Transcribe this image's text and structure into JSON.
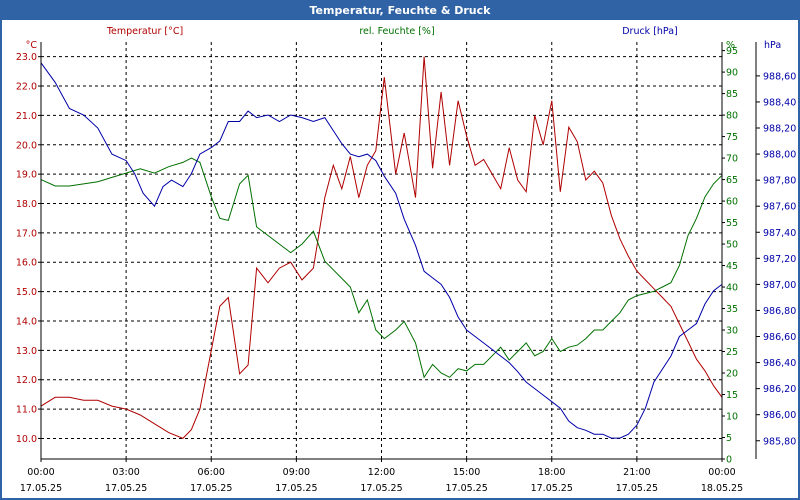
{
  "window_title": "Temperatur, Feuchte & Druck",
  "colors": {
    "temperature": "#b00000",
    "humidity": "#007000",
    "pressure": "#0000a8",
    "frame": "#2f63a5"
  },
  "chart_data": {
    "type": "line",
    "title": "Temperatur, Feuchte & Druck",
    "grid": true,
    "x_axis": {
      "ticks": [
        {
          "time": "00:00",
          "date": "17.05.25"
        },
        {
          "time": "03:00",
          "date": "17.05.25"
        },
        {
          "time": "06:00",
          "date": "17.05.25"
        },
        {
          "time": "09:00",
          "date": "17.05.25"
        },
        {
          "time": "12:00",
          "date": "17.05.25"
        },
        {
          "time": "15:00",
          "date": "17.05.25"
        },
        {
          "time": "18:00",
          "date": "17.05.25"
        },
        {
          "time": "21:00",
          "date": "17.05.25"
        },
        {
          "time": "00:00",
          "date": "18.05.25"
        }
      ],
      "range_hours": [
        0,
        24
      ]
    },
    "left_axis": {
      "unit": "°C",
      "ylim": [
        9.3,
        23.5
      ],
      "ticks": [
        "10.0",
        "11.0",
        "12.0",
        "13.0",
        "14.0",
        "15.0",
        "16.0",
        "17.0",
        "18.0",
        "19.0",
        "20.0",
        "21.0",
        "22.0",
        "23.0"
      ]
    },
    "mid_axis": {
      "unit": "%",
      "ylim": [
        0,
        97
      ],
      "ticks": [
        "0",
        "5",
        "10",
        "15",
        "20",
        "25",
        "30",
        "35",
        "40",
        "45",
        "50",
        "55",
        "60",
        "65",
        "70",
        "75",
        "80",
        "85",
        "90",
        "95"
      ]
    },
    "right_axis": {
      "unit": "hPa",
      "ylim": [
        985.66,
        988.86
      ],
      "ticks": [
        "985,80",
        "986,00",
        "986,20",
        "986,40",
        "986,60",
        "986,80",
        "987,00",
        "987,20",
        "987,40",
        "987,60",
        "987,80",
        "988,00",
        "988,20",
        "988,40",
        "988,60"
      ]
    },
    "series": [
      {
        "name": "Temperatur [°C]",
        "axis": "left",
        "points": [
          [
            0,
            11.1
          ],
          [
            0.5,
            11.4
          ],
          [
            1,
            11.4
          ],
          [
            1.5,
            11.3
          ],
          [
            2,
            11.3
          ],
          [
            2.5,
            11.1
          ],
          [
            3,
            11.0
          ],
          [
            3.5,
            10.8
          ],
          [
            4,
            10.5
          ],
          [
            4.5,
            10.2
          ],
          [
            5,
            10.0
          ],
          [
            5.3,
            10.3
          ],
          [
            5.6,
            11.0
          ],
          [
            6,
            13.0
          ],
          [
            6.3,
            14.5
          ],
          [
            6.6,
            14.8
          ],
          [
            7,
            12.2
          ],
          [
            7.3,
            12.5
          ],
          [
            7.6,
            15.8
          ],
          [
            8,
            15.3
          ],
          [
            8.4,
            15.8
          ],
          [
            8.8,
            16.0
          ],
          [
            9.2,
            15.4
          ],
          [
            9.6,
            15.8
          ],
          [
            10,
            18.2
          ],
          [
            10.3,
            19.3
          ],
          [
            10.6,
            18.5
          ],
          [
            10.9,
            19.6
          ],
          [
            11.2,
            18.2
          ],
          [
            11.5,
            19.3
          ],
          [
            11.8,
            19.8
          ],
          [
            12.1,
            22.3
          ],
          [
            12.5,
            19.0
          ],
          [
            12.8,
            20.4
          ],
          [
            13.2,
            18.2
          ],
          [
            13.5,
            23.0
          ],
          [
            13.8,
            19.2
          ],
          [
            14.1,
            21.8
          ],
          [
            14.4,
            19.3
          ],
          [
            14.7,
            21.5
          ],
          [
            15.0,
            20.3
          ],
          [
            15.3,
            19.3
          ],
          [
            15.6,
            19.5
          ],
          [
            15.9,
            19.0
          ],
          [
            16.2,
            18.5
          ],
          [
            16.5,
            19.9
          ],
          [
            16.8,
            18.8
          ],
          [
            17.1,
            18.4
          ],
          [
            17.4,
            21.0
          ],
          [
            17.7,
            20.0
          ],
          [
            18.0,
            21.5
          ],
          [
            18.3,
            18.4
          ],
          [
            18.6,
            20.6
          ],
          [
            18.9,
            20.1
          ],
          [
            19.2,
            18.8
          ],
          [
            19.5,
            19.1
          ],
          [
            19.8,
            18.7
          ],
          [
            20.1,
            17.6
          ],
          [
            20.4,
            16.8
          ],
          [
            20.7,
            16.2
          ],
          [
            21,
            15.7
          ],
          [
            21.3,
            15.4
          ],
          [
            21.6,
            15.1
          ],
          [
            21.9,
            14.8
          ],
          [
            22.2,
            14.5
          ],
          [
            22.5,
            13.9
          ],
          [
            22.8,
            13.3
          ],
          [
            23.1,
            12.7
          ],
          [
            23.4,
            12.3
          ],
          [
            23.7,
            11.8
          ],
          [
            24,
            11.4
          ]
        ]
      },
      {
        "name": "rel. Feuchte [%]",
        "axis": "mid",
        "points": [
          [
            0,
            65
          ],
          [
            0.5,
            63.5
          ],
          [
            1,
            63.5
          ],
          [
            1.5,
            64
          ],
          [
            2,
            64.5
          ],
          [
            2.5,
            65.5
          ],
          [
            3,
            66.5
          ],
          [
            3.5,
            67.5
          ],
          [
            4,
            66.5
          ],
          [
            4.5,
            68
          ],
          [
            5,
            69
          ],
          [
            5.3,
            70
          ],
          [
            5.6,
            69
          ],
          [
            6,
            61
          ],
          [
            6.3,
            56
          ],
          [
            6.6,
            55.5
          ],
          [
            7,
            64
          ],
          [
            7.3,
            66
          ],
          [
            7.6,
            54
          ],
          [
            8,
            52
          ],
          [
            8.4,
            50
          ],
          [
            8.8,
            48
          ],
          [
            9.2,
            50
          ],
          [
            9.6,
            53
          ],
          [
            10,
            46
          ],
          [
            10.3,
            44
          ],
          [
            10.6,
            42
          ],
          [
            10.9,
            40
          ],
          [
            11.2,
            34
          ],
          [
            11.5,
            37
          ],
          [
            11.8,
            30
          ],
          [
            12.1,
            28
          ],
          [
            12.5,
            30
          ],
          [
            12.8,
            32
          ],
          [
            13.2,
            27
          ],
          [
            13.5,
            19
          ],
          [
            13.8,
            22
          ],
          [
            14.1,
            20
          ],
          [
            14.4,
            19
          ],
          [
            14.7,
            21
          ],
          [
            15.0,
            20.5
          ],
          [
            15.3,
            22
          ],
          [
            15.6,
            22
          ],
          [
            15.9,
            24
          ],
          [
            16.2,
            26
          ],
          [
            16.5,
            23
          ],
          [
            16.8,
            25
          ],
          [
            17.1,
            27
          ],
          [
            17.4,
            24
          ],
          [
            17.7,
            25
          ],
          [
            18.0,
            28
          ],
          [
            18.3,
            25
          ],
          [
            18.6,
            26
          ],
          [
            18.9,
            26.5
          ],
          [
            19.2,
            28
          ],
          [
            19.5,
            30
          ],
          [
            19.8,
            30
          ],
          [
            20.1,
            32
          ],
          [
            20.4,
            34
          ],
          [
            20.7,
            37
          ],
          [
            21,
            38
          ],
          [
            21.3,
            38.5
          ],
          [
            21.6,
            39
          ],
          [
            21.9,
            40
          ],
          [
            22.2,
            41
          ],
          [
            22.5,
            45
          ],
          [
            22.8,
            52
          ],
          [
            23.1,
            56
          ],
          [
            23.4,
            61
          ],
          [
            23.7,
            64
          ],
          [
            24,
            66
          ]
        ]
      },
      {
        "name": "Druck [hPa]",
        "axis": "right",
        "points": [
          [
            0,
            988.7
          ],
          [
            0.5,
            988.55
          ],
          [
            1,
            988.35
          ],
          [
            1.5,
            988.3
          ],
          [
            2,
            988.2
          ],
          [
            2.5,
            988.0
          ],
          [
            3,
            987.95
          ],
          [
            3.3,
            987.85
          ],
          [
            3.6,
            987.7
          ],
          [
            4,
            987.6
          ],
          [
            4.3,
            987.75
          ],
          [
            4.6,
            987.8
          ],
          [
            5,
            987.75
          ],
          [
            5.3,
            987.85
          ],
          [
            5.6,
            988.0
          ],
          [
            6,
            988.05
          ],
          [
            6.3,
            988.1
          ],
          [
            6.6,
            988.25
          ],
          [
            7,
            988.25
          ],
          [
            7.3,
            988.33
          ],
          [
            7.6,
            988.28
          ],
          [
            8,
            988.3
          ],
          [
            8.4,
            988.25
          ],
          [
            8.8,
            988.3
          ],
          [
            9.2,
            988.28
          ],
          [
            9.6,
            988.25
          ],
          [
            10,
            988.28
          ],
          [
            10.3,
            988.18
          ],
          [
            10.6,
            988.08
          ],
          [
            10.9,
            988.0
          ],
          [
            11.2,
            987.98
          ],
          [
            11.5,
            988.0
          ],
          [
            11.8,
            987.95
          ],
          [
            12.1,
            987.83
          ],
          [
            12.5,
            987.7
          ],
          [
            12.8,
            987.5
          ],
          [
            13.2,
            987.3
          ],
          [
            13.5,
            987.1
          ],
          [
            13.8,
            987.05
          ],
          [
            14.1,
            987.0
          ],
          [
            14.4,
            986.9
          ],
          [
            14.7,
            986.75
          ],
          [
            15.0,
            986.65
          ],
          [
            15.3,
            986.6
          ],
          [
            15.6,
            986.55
          ],
          [
            15.9,
            986.5
          ],
          [
            16.2,
            986.45
          ],
          [
            16.5,
            986.4
          ],
          [
            16.8,
            986.33
          ],
          [
            17.1,
            986.25
          ],
          [
            17.4,
            986.2
          ],
          [
            17.7,
            986.15
          ],
          [
            18.0,
            986.1
          ],
          [
            18.3,
            986.05
          ],
          [
            18.6,
            985.95
          ],
          [
            18.9,
            985.9
          ],
          [
            19.2,
            985.88
          ],
          [
            19.5,
            985.85
          ],
          [
            19.8,
            985.85
          ],
          [
            20.1,
            985.82
          ],
          [
            20.4,
            985.82
          ],
          [
            20.7,
            985.85
          ],
          [
            21,
            985.92
          ],
          [
            21.3,
            986.05
          ],
          [
            21.6,
            986.25
          ],
          [
            21.9,
            986.35
          ],
          [
            22.2,
            986.45
          ],
          [
            22.5,
            986.6
          ],
          [
            22.8,
            986.65
          ],
          [
            23.1,
            986.7
          ],
          [
            23.4,
            986.85
          ],
          [
            23.7,
            986.95
          ],
          [
            24,
            987.0
          ]
        ]
      }
    ]
  }
}
